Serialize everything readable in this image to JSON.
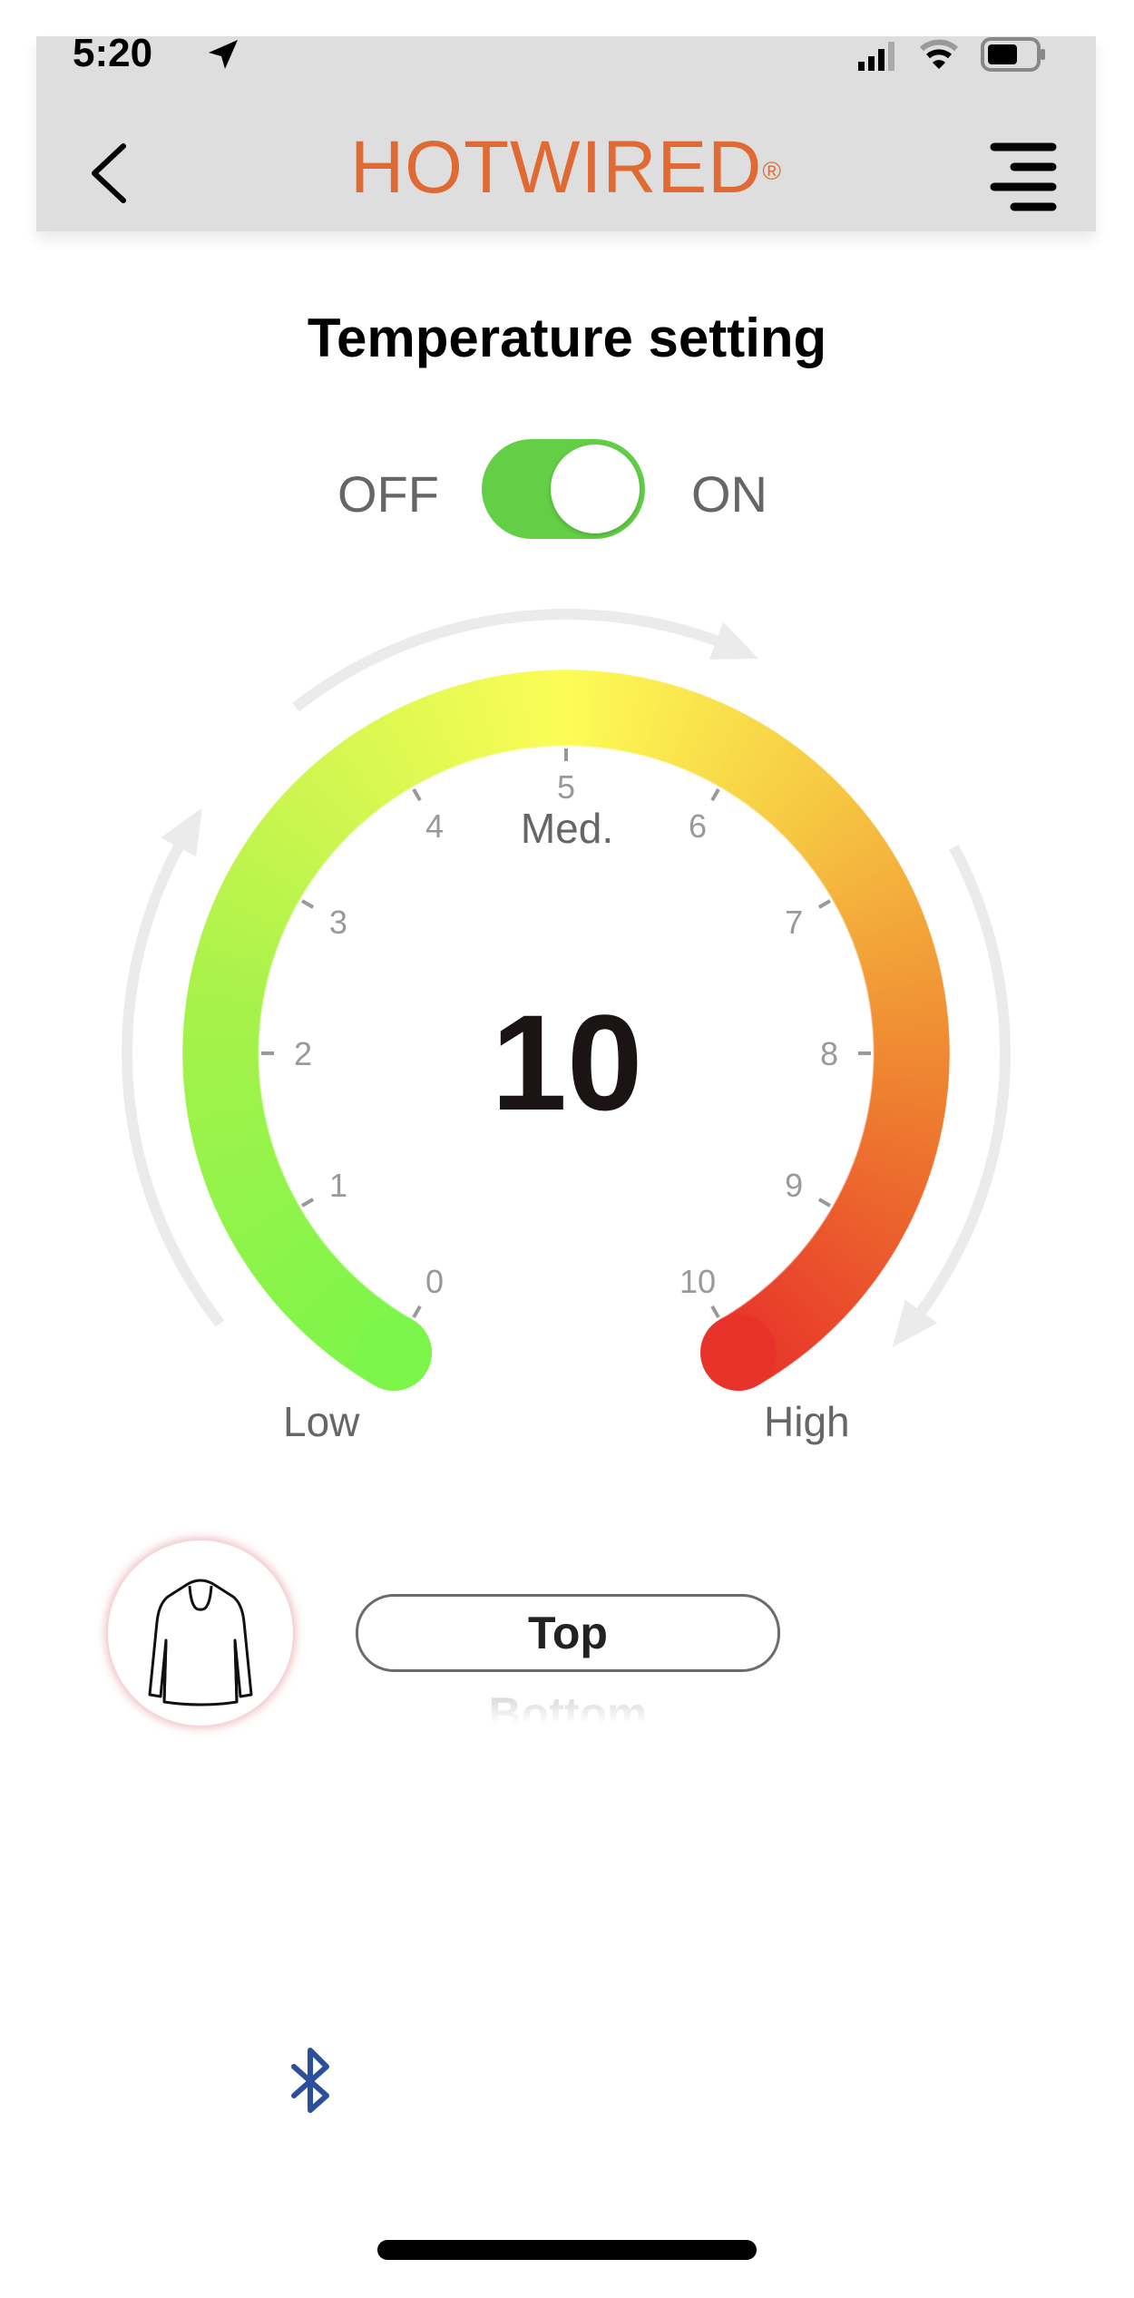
{
  "status_bar": {
    "time": "5:20",
    "icons": [
      "location-arrow-icon",
      "signal-icon",
      "wifi-icon",
      "battery-icon"
    ]
  },
  "header": {
    "brand": "HOTWIRED",
    "brand_mark": "®",
    "brand_color": "#e06a33",
    "back_icon": "chevron-left-icon",
    "menu_icon": "menu-icon"
  },
  "page": {
    "title": "Temperature setting"
  },
  "power": {
    "off_label": "OFF",
    "on_label": "ON",
    "state": "on",
    "color": "#63cf46"
  },
  "gauge": {
    "value": "10",
    "min": 0,
    "max": 10,
    "ticks": [
      "0",
      "1",
      "2",
      "3",
      "4",
      "5",
      "6",
      "7",
      "8",
      "9",
      "10"
    ],
    "mid_label": "Med.",
    "low_label": "Low",
    "high_label": "High",
    "colors": {
      "low": "#7cf54a",
      "mid": "#fdfc56",
      "high": "#e8332a"
    }
  },
  "zone": {
    "icon": "jacket-icon",
    "options": [
      "Top",
      "Bottom"
    ],
    "selected": "Top"
  },
  "footer": {
    "bluetooth_icon": "bluetooth-icon",
    "bluetooth_color": "#2b4f9a"
  }
}
